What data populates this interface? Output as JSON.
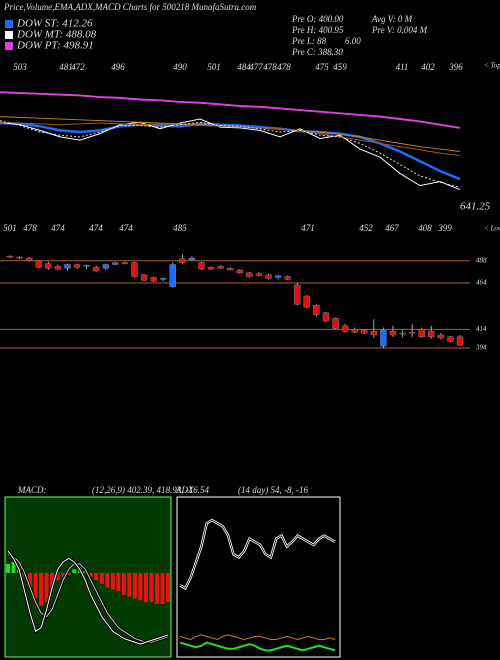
{
  "chart_data": [
    {
      "type": "ema",
      "title": "Price,Volume,EMA,ADX,MACD Charts for 500218 MunafaSutra.com",
      "info": [
        "Pre O: 400.00",
        "Pre H: 400.95",
        "Pre L: 88",
        "Pre C: 388.30",
        "Avg V: 0 M",
        "Pre V: 0.004 M",
        "6.00"
      ],
      "top_labels": [
        503,
        481,
        472,
        496,
        490,
        501,
        484,
        477,
        478,
        478,
        475,
        459,
        411,
        402,
        396
      ],
      "tops_label": "< Tops",
      "low_labels": [
        501,
        478,
        474,
        474,
        474,
        485,
        471,
        452,
        467,
        408,
        399
      ],
      "lows_label": "< Lows",
      "price_label": "641.25",
      "ylim": [
        380,
        540
      ],
      "series": [
        {
          "name": "DOW ST: 412.26",
          "color": "#1e6bff",
          "values": [
            487,
            486,
            483,
            478,
            476,
            478,
            483,
            485,
            484,
            483,
            486,
            485,
            484,
            482,
            480,
            477,
            476,
            474,
            470,
            462,
            452,
            440,
            428,
            418
          ]
        },
        {
          "name": "DOW MT: 488.08",
          "color": "#ffffff",
          "values": [
            488,
            485,
            478,
            470,
            466,
            474,
            485,
            488,
            480,
            487,
            492,
            482,
            481,
            478,
            470,
            480,
            468,
            472,
            455,
            445,
            425,
            410,
            415,
            405
          ]
        },
        {
          "name": "DOW PT: 498.91",
          "color": "#e040e0",
          "values": [
            525,
            524,
            523,
            522,
            521,
            519,
            518,
            516,
            515,
            513,
            512,
            510,
            508,
            507,
            505,
            503,
            501,
            499,
            497,
            495,
            492,
            489,
            485,
            481
          ]
        },
        {
          "color": "#c87a2a",
          "values": [
            495,
            494,
            493,
            492,
            491,
            490,
            489,
            488,
            487,
            486,
            485,
            484,
            482,
            481,
            480,
            478,
            476,
            473,
            470,
            466,
            462,
            458,
            455,
            452
          ]
        },
        {
          "color": "#9a5a20",
          "values": [
            488,
            487,
            486,
            485,
            486,
            487,
            486,
            485,
            486,
            485,
            484,
            483,
            482,
            481,
            480,
            478,
            474,
            470,
            466,
            462,
            458,
            454,
            450,
            447
          ]
        },
        {
          "color": "#dddddd",
          "dashed": true,
          "values": [
            490,
            484,
            476,
            472,
            470,
            476,
            484,
            484,
            482,
            485,
            488,
            484,
            483,
            480,
            476,
            478,
            472,
            470,
            462,
            450,
            436,
            422,
            414,
            408
          ]
        }
      ]
    },
    {
      "type": "candlestick",
      "ylim": [
        381,
        505
      ],
      "levels": [
        488,
        464,
        414,
        394
      ],
      "level_color": "#b0622a",
      "up_color": "#1e6bff",
      "down_color": "#e01010",
      "open": [
        493,
        492,
        491,
        488,
        485,
        482,
        480,
        484,
        482,
        481,
        480,
        484,
        486,
        486,
        473,
        470,
        468,
        460,
        490,
        489,
        486,
        481,
        482,
        480,
        478,
        475,
        474,
        473,
        470,
        471,
        462,
        450,
        440,
        432,
        426,
        418,
        414,
        413,
        412,
        396,
        412,
        410,
        411,
        414,
        412,
        408,
        406,
        406
      ],
      "high": [
        494,
        493,
        492,
        489,
        487,
        484,
        485,
        485,
        484,
        483,
        485,
        487,
        487,
        487,
        474,
        471,
        470,
        486,
        495,
        493,
        487,
        482,
        483,
        481,
        479,
        476,
        476,
        474,
        473,
        472,
        464,
        451,
        441,
        433,
        427,
        420,
        416,
        414,
        425,
        416,
        418,
        413,
        420,
        416,
        418,
        410,
        407,
        408
      ],
      "low": [
        491,
        490,
        487,
        480,
        478,
        478,
        477,
        479,
        479,
        476,
        478,
        483,
        484,
        470,
        466,
        465,
        466,
        459,
        484,
        488,
        478,
        478,
        479,
        478,
        474,
        470,
        471,
        468,
        468,
        467,
        440,
        437,
        428,
        422,
        414,
        411,
        410,
        409,
        405,
        394,
        406,
        406,
        406,
        405,
        404,
        403,
        400,
        396
      ],
      "close": [
        492,
        491,
        488,
        481,
        480,
        479,
        484,
        481,
        483,
        477,
        484,
        486,
        485,
        471,
        467,
        466,
        469,
        484,
        486,
        491,
        479,
        479,
        480,
        478,
        475,
        471,
        472,
        469,
        472,
        468,
        441,
        438,
        430,
        423,
        415,
        412,
        411,
        410,
        408,
        413,
        408,
        409,
        410,
        406,
        406,
        405,
        401,
        397
      ]
    },
    {
      "type": "macd",
      "title": "MACD:",
      "params": "(12,26,9) 402.39, 418.93, -16.54",
      "ylim": [
        -45,
        40
      ],
      "up_color": "#22dd22",
      "down_color": "#ee1111",
      "histogram": [
        5,
        6,
        4,
        -2,
        -8,
        -14,
        -18,
        -16,
        -10,
        -4,
        -2,
        -1,
        2,
        3,
        1,
        -2,
        -4,
        -6,
        -8,
        -9,
        -10,
        -12,
        -13,
        -14,
        -15,
        -16,
        -16,
        -17,
        -17,
        -16
      ],
      "macd": [
        12,
        8,
        2,
        -10,
        -22,
        -32,
        -30,
        -20,
        -8,
        2,
        6,
        8,
        6,
        2,
        -4,
        -12,
        -18,
        -24,
        -28,
        -32,
        -34,
        -36,
        -37,
        -38,
        -39,
        -38,
        -37,
        -36,
        -35,
        -34
      ],
      "signal": [
        10,
        9,
        6,
        0,
        -8,
        -16,
        -22,
        -24,
        -20,
        -12,
        -4,
        2,
        5,
        5,
        2,
        -4,
        -10,
        -16,
        -22,
        -26,
        -30,
        -32,
        -34,
        -36,
        -37,
        -38,
        -38,
        -37,
        -36,
        -35
      ]
    },
    {
      "type": "adx",
      "title": "ADX",
      "params": "(14 day) 54, -8, -16",
      "ylim": [
        0,
        100
      ],
      "adx": [
        45,
        43,
        50,
        60,
        70,
        85,
        87,
        85,
        83,
        77,
        65,
        63,
        67,
        75,
        73,
        71,
        65,
        63,
        75,
        77,
        70,
        73,
        77,
        75,
        73,
        71,
        75,
        77,
        75,
        73
      ],
      "plus": [
        12,
        11,
        10,
        12,
        13,
        12,
        11,
        10,
        12,
        13,
        12,
        11,
        10,
        11,
        12,
        12,
        11,
        10,
        10,
        11,
        12,
        11,
        10,
        11,
        12,
        11,
        10,
        10,
        11,
        10
      ],
      "minus": [
        8,
        7,
        6,
        5,
        6,
        8,
        7,
        6,
        5,
        4,
        4,
        5,
        6,
        7,
        6,
        4,
        3,
        3,
        4,
        5,
        6,
        5,
        4,
        3,
        4,
        5,
        6,
        5,
        4,
        3
      ]
    }
  ]
}
